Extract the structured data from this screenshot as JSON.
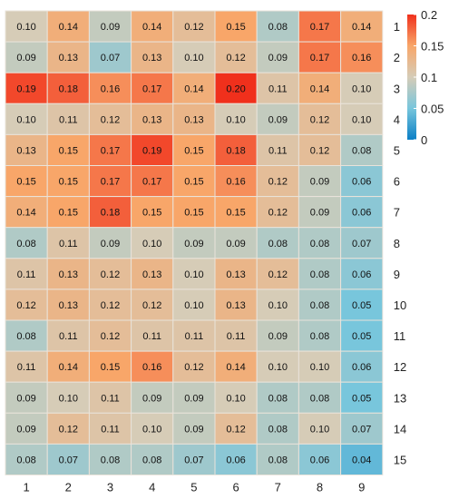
{
  "chart_data": {
    "type": "heatmap",
    "title": "",
    "xlabel": "",
    "ylabel": "",
    "x_categories": [
      "1",
      "2",
      "3",
      "4",
      "5",
      "6",
      "7",
      "8",
      "9"
    ],
    "y_categories": [
      "1",
      "2",
      "3",
      "4",
      "5",
      "6",
      "7",
      "8",
      "9",
      "10",
      "11",
      "12",
      "13",
      "14",
      "15"
    ],
    "values": [
      [
        0.1,
        0.14,
        0.09,
        0.14,
        0.12,
        0.15,
        0.08,
        0.17,
        0.14
      ],
      [
        0.09,
        0.13,
        0.07,
        0.13,
        0.1,
        0.12,
        0.09,
        0.17,
        0.16
      ],
      [
        0.19,
        0.18,
        0.16,
        0.17,
        0.14,
        0.2,
        0.11,
        0.14,
        0.1
      ],
      [
        0.1,
        0.11,
        0.12,
        0.13,
        0.13,
        0.1,
        0.09,
        0.12,
        0.1
      ],
      [
        0.13,
        0.15,
        0.17,
        0.19,
        0.15,
        0.18,
        0.11,
        0.12,
        0.08
      ],
      [
        0.15,
        0.15,
        0.17,
        0.17,
        0.15,
        0.16,
        0.12,
        0.09,
        0.06
      ],
      [
        0.14,
        0.15,
        0.18,
        0.15,
        0.15,
        0.15,
        0.12,
        0.09,
        0.06
      ],
      [
        0.08,
        0.11,
        0.09,
        0.1,
        0.09,
        0.09,
        0.08,
        0.08,
        0.07
      ],
      [
        0.11,
        0.13,
        0.12,
        0.13,
        0.1,
        0.13,
        0.12,
        0.08,
        0.06
      ],
      [
        0.12,
        0.13,
        0.12,
        0.12,
        0.1,
        0.13,
        0.1,
        0.08,
        0.05
      ],
      [
        0.08,
        0.11,
        0.12,
        0.11,
        0.11,
        0.11,
        0.09,
        0.08,
        0.05
      ],
      [
        0.11,
        0.14,
        0.15,
        0.16,
        0.12,
        0.14,
        0.1,
        0.1,
        0.06
      ],
      [
        0.09,
        0.1,
        0.11,
        0.09,
        0.09,
        0.1,
        0.08,
        0.08,
        0.05
      ],
      [
        0.09,
        0.12,
        0.11,
        0.1,
        0.09,
        0.12,
        0.08,
        0.1,
        0.07
      ],
      [
        0.08,
        0.07,
        0.08,
        0.08,
        0.07,
        0.06,
        0.08,
        0.06,
        0.04
      ]
    ],
    "legend": {
      "range": [
        0,
        0.2
      ],
      "ticks": [
        0,
        0.05,
        0.1,
        0.15,
        0.2
      ],
      "tick_labels": [
        "0",
        "0.05",
        "0.1",
        "0.15",
        "0.2"
      ],
      "placement": "top-right",
      "colors": [
        "#0a7fc6",
        "#78c6dc",
        "#d6ccb7",
        "#f8a669",
        "#f0301c"
      ]
    },
    "grid": false
  }
}
